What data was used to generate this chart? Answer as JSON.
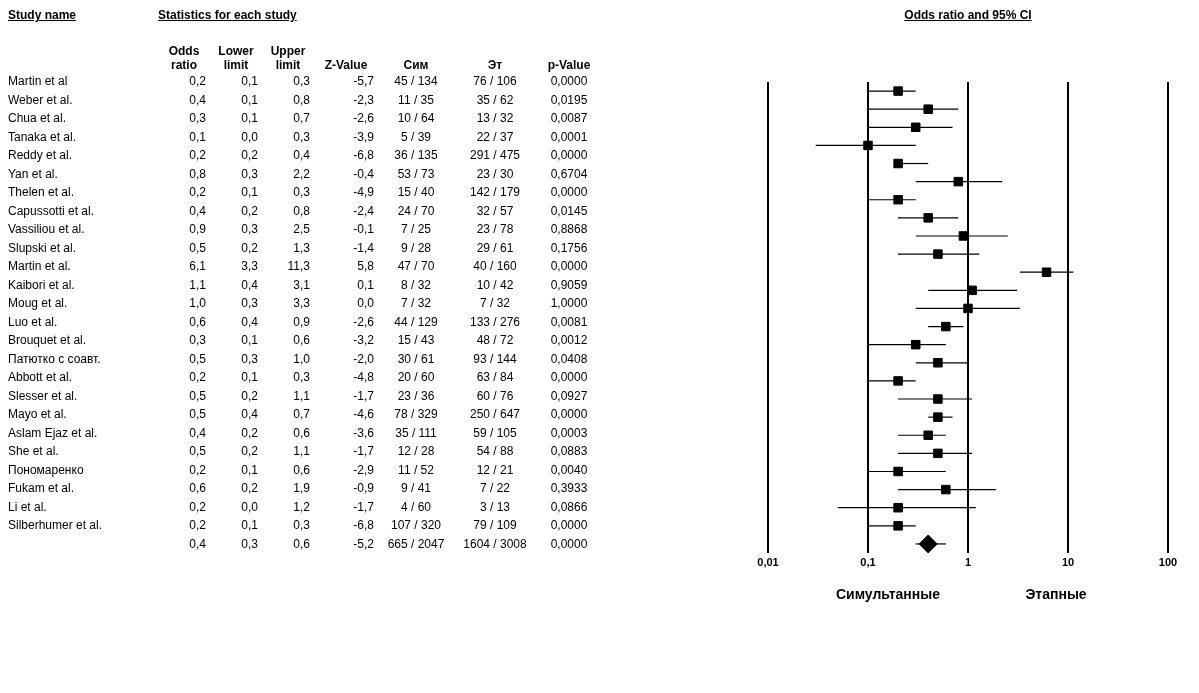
{
  "chart_data": [
    {
      "type": "other",
      "title": "Statistics for each study",
      "ylabel": "Study name",
      "categories": [
        "Odds ratio",
        "Lower limit",
        "Upper limit",
        "Z-Value",
        "Сим",
        "Эт",
        "p-Value"
      ],
      "y_categories": [
        "Martin et al",
        "Weber et al.",
        "Chua et al.",
        "Tanaka et al.",
        "Reddy et al.",
        "Yan et al.",
        "Thelen et al.",
        "Capussotti et al.",
        "Vassiliou et al.",
        "Slupski et al.",
        "Martin et al.",
        "Kaibori et al.",
        "Moug et al.",
        "Luo et al.",
        "Brouquet et al.",
        "Патютко с соавт.",
        "Abbott et al.",
        "Slesser et al.",
        "Mayo et al.",
        "Aslam Ejaz et al.",
        "She et al.",
        "Пономаренко",
        "Fukam et al.",
        "Li et al.",
        "Silberhumer et al.",
        null
      ],
      "cell_labels": [
        [
          "0,2",
          "0,1",
          "0,3",
          "-5,7",
          "45 / 134",
          "76 / 106",
          "0,0000"
        ],
        [
          "0,4",
          "0,1",
          "0,8",
          "-2,3",
          "11 / 35",
          "35 / 62",
          "0,0195"
        ],
        [
          "0,3",
          "0,1",
          "0,7",
          "-2,6",
          "10 / 64",
          "13 / 32",
          "0,0087"
        ],
        [
          "0,1",
          "0,0",
          "0,3",
          "-3,9",
          "5 / 39",
          "22 / 37",
          "0,0001"
        ],
        [
          "0,2",
          "0,2",
          "0,4",
          "-6,8",
          "36 / 135",
          "291 / 475",
          "0,0000"
        ],
        [
          "0,8",
          "0,3",
          "2,2",
          "-0,4",
          "53 / 73",
          "23 / 30",
          "0,6704"
        ],
        [
          "0,2",
          "0,1",
          "0,3",
          "-4,9",
          "15 / 40",
          "142 / 179",
          "0,0000"
        ],
        [
          "0,4",
          "0,2",
          "0,8",
          "-2,4",
          "24 / 70",
          "32 / 57",
          "0,0145"
        ],
        [
          "0,9",
          "0,3",
          "2,5",
          "-0,1",
          "7 / 25",
          "23 / 78",
          "0,8868"
        ],
        [
          "0,5",
          "0,2",
          "1,3",
          "-1,4",
          "9 / 28",
          "29 / 61",
          "0,1756"
        ],
        [
          "6,1",
          "3,3",
          "11,3",
          "5,8",
          "47 / 70",
          "40 / 160",
          "0,0000"
        ],
        [
          "1,1",
          "0,4",
          "3,1",
          "0,1",
          "8 / 32",
          "10 / 42",
          "0,9059"
        ],
        [
          "1,0",
          "0,3",
          "3,3",
          "0,0",
          "7 / 32",
          "7 / 32",
          "1,0000"
        ],
        [
          "0,6",
          "0,4",
          "0,9",
          "-2,6",
          "44 / 129",
          "133 / 276",
          "0,0081"
        ],
        [
          "0,3",
          "0,1",
          "0,6",
          "-3,2",
          "15 / 43",
          "48 / 72",
          "0,0012"
        ],
        [
          "0,5",
          "0,3",
          "1,0",
          "-2,0",
          "30 / 61",
          "93 / 144",
          "0,0408"
        ],
        [
          "0,2",
          "0,1",
          "0,3",
          "-4,8",
          "20 / 60",
          "63 / 84",
          "0,0000"
        ],
        [
          "0,5",
          "0,2",
          "1,1",
          "-1,7",
          "23 / 36",
          "60 / 76",
          "0,0927"
        ],
        [
          "0,5",
          "0,4",
          "0,7",
          "-4,6",
          "78 / 329",
          "250 / 647",
          "0,0000"
        ],
        [
          "0,4",
          "0,2",
          "0,6",
          "-3,6",
          "35 / 111",
          "59 / 105",
          "0,0003"
        ],
        [
          "0,5",
          "0,2",
          "1,1",
          "-1,7",
          "12 / 28",
          "54 / 88",
          "0,0883"
        ],
        [
          "0,2",
          "0,1",
          "0,6",
          "-2,9",
          "11 / 52",
          "12 / 21",
          "0,0040"
        ],
        [
          "0,6",
          "0,2",
          "1,9",
          "-0,9",
          "9 / 41",
          "7 / 22",
          "0,3933"
        ],
        [
          "0,2",
          "0,0",
          "1,2",
          "-1,7",
          "4 / 60",
          "3 / 13",
          "0,0866"
        ],
        [
          "0,2",
          "0,1",
          "0,3",
          "-6,8",
          "107 / 320",
          "79 / 109",
          "0,0000"
        ],
        [
          "0,4",
          "0,3",
          "0,6",
          "-5,2",
          "665 / 2047",
          "1604 / 3008",
          "0,0000"
        ]
      ]
    },
    {
      "type": "scatter",
      "title": "Odds ratio and 95% CI",
      "orientation": "horizontal",
      "log": "x",
      "grid": "x",
      "legend": false,
      "categories": [
        null,
        null,
        null,
        null,
        null,
        null,
        null,
        null,
        null,
        null,
        null,
        null,
        null,
        null,
        null,
        null,
        null,
        null,
        null,
        null,
        null,
        null,
        null,
        null,
        null,
        null
      ],
      "xlim": [
        0.01,
        100
      ],
      "xticks": [
        {
          "value": 0.01,
          "label": "0,01"
        },
        {
          "value": 0.1,
          "label": "0,1"
        },
        1,
        10,
        100
      ],
      "series": [
        {
          "marker": "square",
          "color": "#000000",
          "values": [
            0.2,
            0.4,
            0.3,
            0.1,
            0.2,
            0.8,
            0.2,
            0.4,
            0.9,
            0.5,
            6.1,
            1.1,
            1.0,
            0.6,
            0.3,
            0.5,
            0.2,
            0.5,
            0.5,
            0.4,
            0.5,
            0.2,
            0.6,
            0.2,
            0.2,
            null
          ],
          "errors": [
            [
              0.1,
              0.3
            ],
            [
              0.1,
              0.8
            ],
            [
              0.1,
              0.7
            ],
            [
              0.03,
              0.3
            ],
            [
              0.2,
              0.4
            ],
            [
              0.3,
              2.2
            ],
            [
              0.1,
              0.3
            ],
            [
              0.2,
              0.8
            ],
            [
              0.3,
              2.5
            ],
            [
              0.2,
              1.3
            ],
            [
              3.3,
              11.3
            ],
            [
              0.4,
              3.1
            ],
            [
              0.3,
              3.3
            ],
            [
              0.4,
              0.9
            ],
            [
              0.1,
              0.6
            ],
            [
              0.3,
              1.0
            ],
            [
              0.1,
              0.3
            ],
            [
              0.2,
              1.1
            ],
            [
              0.4,
              0.7
            ],
            [
              0.2,
              0.6
            ],
            [
              0.2,
              1.1
            ],
            [
              0.1,
              0.6
            ],
            [
              0.2,
              1.9
            ],
            [
              0.05,
              1.2
            ],
            [
              0.1,
              0.3
            ],
            null
          ]
        },
        {
          "marker": "diamond",
          "color": "#000000",
          "values": [
            null,
            null,
            null,
            null,
            null,
            null,
            null,
            null,
            null,
            null,
            null,
            null,
            null,
            null,
            null,
            null,
            null,
            null,
            null,
            null,
            null,
            null,
            null,
            null,
            null,
            0.4
          ],
          "errors": [
            null,
            null,
            null,
            null,
            null,
            null,
            null,
            null,
            null,
            null,
            null,
            null,
            null,
            null,
            null,
            null,
            null,
            null,
            null,
            null,
            null,
            null,
            null,
            null,
            null,
            [
              0.3,
              0.6
            ]
          ]
        }
      ],
      "annotations": [
        "Симультанные",
        "Этапные"
      ]
    }
  ]
}
